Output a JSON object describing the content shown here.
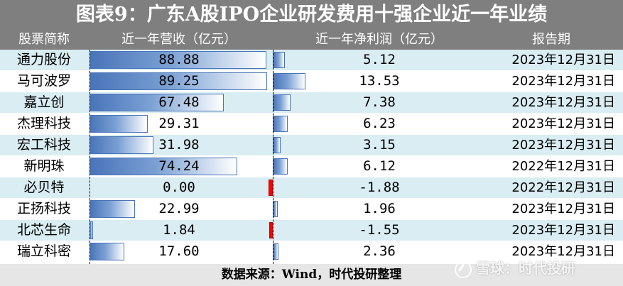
{
  "title": "图表9：广东A股IPO企业研发费用十强企业近一年业绩",
  "columns": {
    "name": "股票简称",
    "revenue": "近一年营收（亿元）",
    "profit": "近一年净利润（亿元）",
    "date": "报告期"
  },
  "rows": [
    {
      "name": "通力股份",
      "revenue": "88.88",
      "profit": "5.12",
      "date": "2023年12月31日"
    },
    {
      "name": "马可波罗",
      "revenue": "89.25",
      "profit": "13.53",
      "date": "2023年12月31日"
    },
    {
      "name": "嘉立创",
      "revenue": "67.48",
      "profit": "7.38",
      "date": "2023年12月31日"
    },
    {
      "name": "杰理科技",
      "revenue": "29.31",
      "profit": "6.23",
      "date": "2023年12月31日"
    },
    {
      "name": "宏工科技",
      "revenue": "31.98",
      "profit": "3.15",
      "date": "2023年12月31日"
    },
    {
      "name": "新明珠",
      "revenue": "74.24",
      "profit": "6.12",
      "date": "2022年12月31日"
    },
    {
      "name": "必贝特",
      "revenue": "0.00",
      "profit": "-1.88",
      "date": "2022年12月31日"
    },
    {
      "name": "正扬科技",
      "revenue": "22.99",
      "profit": "1.96",
      "date": "2023年12月31日"
    },
    {
      "name": "北芯生命",
      "revenue": "1.84",
      "profit": "-1.55",
      "date": "2023年12月31日"
    },
    {
      "name": "瑞立科密",
      "revenue": "17.60",
      "profit": "2.36",
      "date": "2023年12月31日"
    }
  ],
  "footer": "数据来源：Wind，时代投研整理",
  "watermark": "雪球：时代投研",
  "colors": {
    "header_bg": "#7f7f7f",
    "row_shade": "#d9edf3",
    "bar_blue": "#4a74b8",
    "negative_bar": "#ff0000",
    "footer_bg": "#e6e6e6"
  }
}
